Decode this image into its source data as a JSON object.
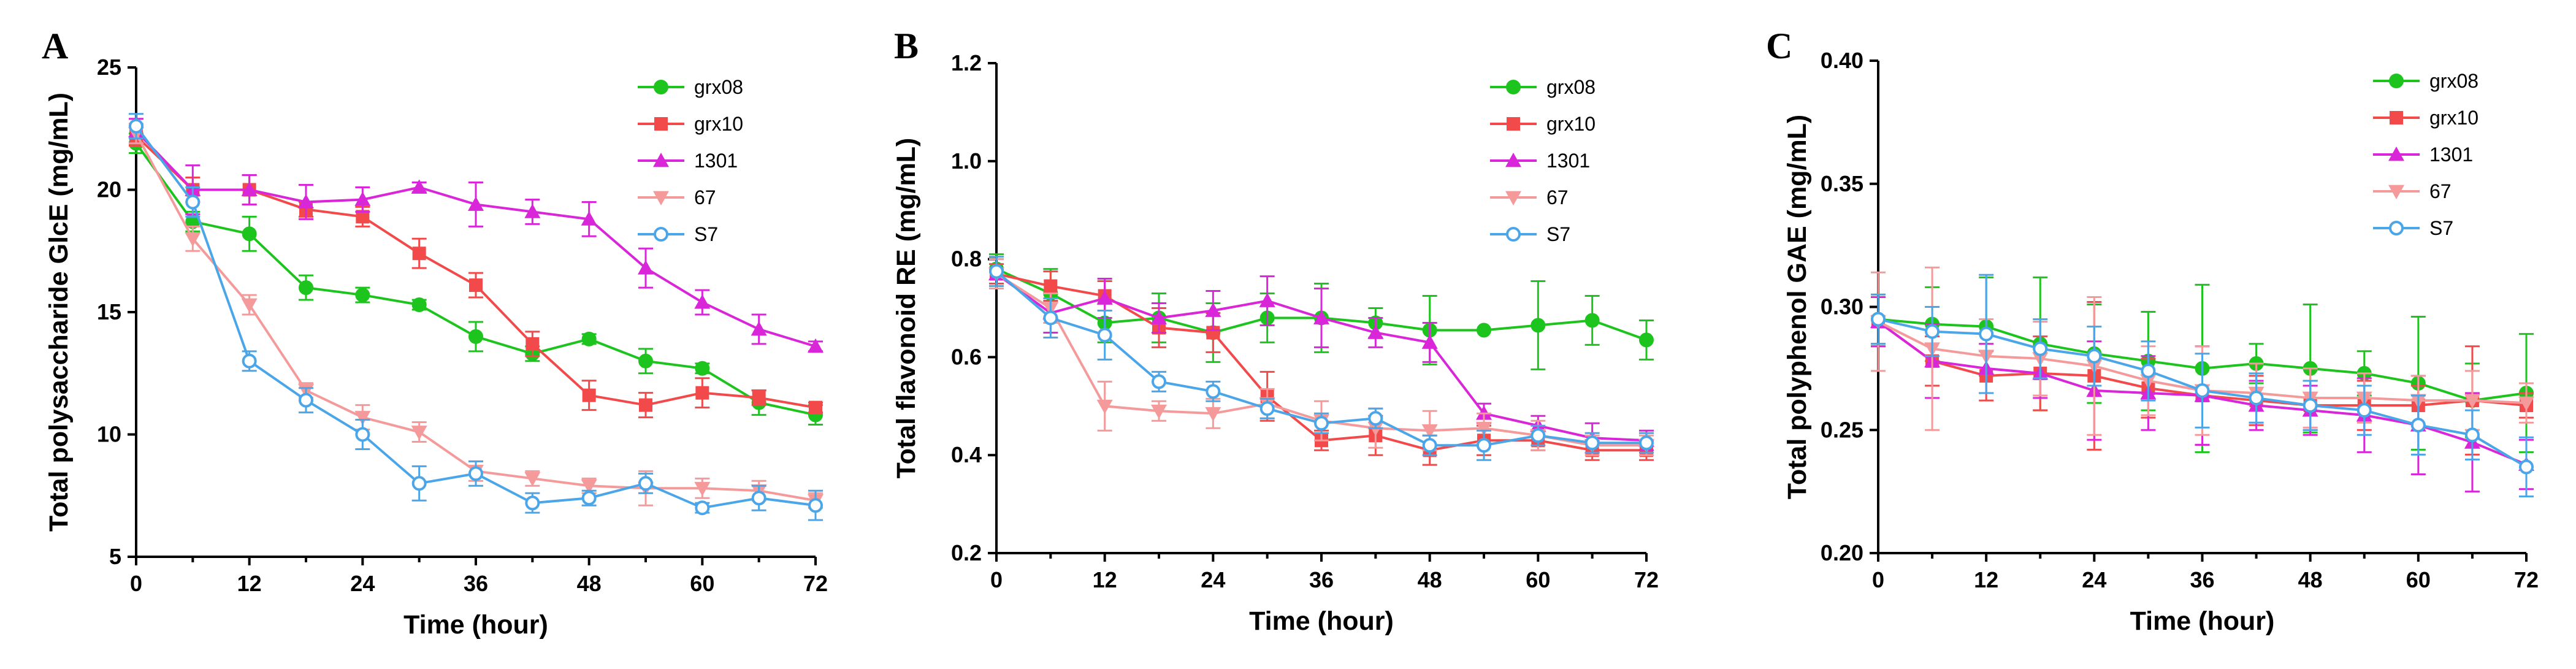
{
  "chart_data": [
    {
      "type": "line",
      "panel_label": "A",
      "xlabel": "Time (hour)",
      "ylabel": "Total polysaccharide GlcE (mg/mL)",
      "xlim": [
        0,
        72
      ],
      "ylim": [
        5,
        25
      ],
      "xticks": [
        "0",
        "12",
        "24",
        "36",
        "48",
        "60",
        "72"
      ],
      "yticks": [
        "5",
        "10",
        "15",
        "20",
        "25"
      ],
      "legend_position": "top-right",
      "x": [
        0,
        6,
        12,
        18,
        24,
        30,
        36,
        42,
        48,
        54,
        60,
        66,
        72
      ],
      "series": [
        {
          "name": "grx08",
          "color": "#1ec41e",
          "marker": "circle",
          "values": [
            21.9,
            18.7,
            18.2,
            16.0,
            15.7,
            15.3,
            14.0,
            13.3,
            13.9,
            13.0,
            12.7,
            11.3,
            10.8
          ],
          "errors": [
            0.4,
            0.4,
            0.7,
            0.5,
            0.3,
            0.2,
            0.6,
            0.3,
            0.2,
            0.5,
            0.2,
            0.5,
            0.4
          ]
        },
        {
          "name": "grx10",
          "color": "#f24a4a",
          "marker": "square",
          "values": [
            22.2,
            20.0,
            20.0,
            19.2,
            18.9,
            17.4,
            16.1,
            13.7,
            11.6,
            11.2,
            11.7,
            11.5,
            11.1
          ],
          "errors": [
            0.4,
            0.5,
            0.6,
            0.3,
            0.4,
            0.6,
            0.5,
            0.5,
            0.6,
            0.5,
            0.6,
            0.3,
            0.2
          ]
        },
        {
          "name": "1301",
          "color": "#d826d8",
          "marker": "triangle-up",
          "values": [
            22.4,
            20.0,
            20.0,
            19.5,
            19.6,
            20.1,
            19.4,
            19.1,
            18.8,
            16.8,
            15.4,
            14.3,
            13.6
          ],
          "errors": [
            0.5,
            1.0,
            0.6,
            0.7,
            0.5,
            0.2,
            0.9,
            0.5,
            0.7,
            0.8,
            0.5,
            0.6,
            0.2
          ]
        },
        {
          "name": "67",
          "color": "#f59a9a",
          "marker": "triangle-down",
          "values": [
            22.3,
            18.0,
            15.3,
            11.8,
            10.7,
            10.1,
            8.5,
            8.2,
            7.9,
            7.8,
            7.8,
            7.7,
            7.3
          ],
          "errors": [
            0.4,
            0.5,
            0.4,
            0.3,
            0.5,
            0.4,
            0.4,
            0.3,
            0.3,
            0.7,
            0.4,
            0.4,
            0.3
          ]
        },
        {
          "name": "S7",
          "color": "#4aa6e8",
          "marker": "circle-open",
          "values": [
            22.6,
            19.5,
            13.0,
            11.4,
            10.0,
            8.0,
            8.4,
            7.2,
            7.4,
            8.0,
            7.0,
            7.4,
            7.1
          ],
          "errors": [
            0.5,
            0.6,
            0.4,
            0.5,
            0.6,
            0.7,
            0.5,
            0.4,
            0.3,
            0.4,
            0.2,
            0.5,
            0.6
          ]
        }
      ]
    },
    {
      "type": "line",
      "panel_label": "B",
      "xlabel": "Time (hour)",
      "ylabel": "Total flavonoid  RE (mg/mL)",
      "xlim": [
        0,
        72
      ],
      "ylim": [
        0.2,
        1.2
      ],
      "xticks": [
        "0",
        "12",
        "24",
        "36",
        "48",
        "60",
        "72"
      ],
      "yticks": [
        "0.2",
        "0.4",
        "0.6",
        "0.8",
        "1.0",
        "1.2"
      ],
      "legend_position": "top-right",
      "x": [
        0,
        6,
        12,
        18,
        24,
        30,
        36,
        42,
        48,
        54,
        60,
        66,
        72
      ],
      "series": [
        {
          "name": "grx08",
          "color": "#1ec41e",
          "marker": "circle",
          "values": [
            0.78,
            0.73,
            0.67,
            0.68,
            0.65,
            0.68,
            0.68,
            0.67,
            0.655,
            0.655,
            0.665,
            0.675,
            0.635
          ],
          "errors": [
            0.03,
            0.05,
            0.04,
            0.05,
            0.06,
            0.05,
            0.07,
            0.03,
            0.07,
            0.0,
            0.09,
            0.05,
            0.04
          ]
        },
        {
          "name": "grx10",
          "color": "#f24a4a",
          "marker": "square",
          "values": [
            0.77,
            0.745,
            0.725,
            0.66,
            0.65,
            0.52,
            0.43,
            0.44,
            0.41,
            0.43,
            0.43,
            0.41,
            0.41
          ],
          "errors": [
            0.02,
            0.03,
            0.03,
            0.04,
            0.04,
            0.05,
            0.02,
            0.04,
            0.03,
            0.03,
            0.02,
            0.02,
            0.02
          ]
        },
        {
          "name": "1301",
          "color": "#d826d8",
          "marker": "triangle-up",
          "values": [
            0.77,
            0.69,
            0.72,
            0.68,
            0.695,
            0.715,
            0.68,
            0.65,
            0.63,
            0.485,
            0.46,
            0.435,
            0.43
          ],
          "errors": [
            0.03,
            0.04,
            0.04,
            0.03,
            0.04,
            0.05,
            0.06,
            0.03,
            0.04,
            0.02,
            0.02,
            0.03,
            0.02
          ]
        },
        {
          "name": "67",
          "color": "#f59a9a",
          "marker": "triangle-down",
          "values": [
            0.77,
            0.7,
            0.5,
            0.49,
            0.485,
            0.505,
            0.47,
            0.455,
            0.45,
            0.455,
            0.44,
            0.42,
            0.42
          ],
          "errors": [
            0.03,
            0.03,
            0.05,
            0.02,
            0.03,
            0.03,
            0.04,
            0.04,
            0.04,
            0.03,
            0.03,
            0.02,
            0.02
          ]
        },
        {
          "name": "S7",
          "color": "#4aa6e8",
          "marker": "circle-open",
          "values": [
            0.775,
            0.68,
            0.645,
            0.55,
            0.53,
            0.495,
            0.465,
            0.475,
            0.42,
            0.42,
            0.44,
            0.425,
            0.425
          ],
          "errors": [
            0.03,
            0.04,
            0.05,
            0.02,
            0.02,
            0.02,
            0.02,
            0.02,
            0.02,
            0.03,
            0.02,
            0.02,
            0.02
          ]
        }
      ]
    },
    {
      "type": "line",
      "panel_label": "C",
      "xlabel": "Time (hour)",
      "ylabel": "Total polyphenol  GAE (mg/mL)",
      "xlim": [
        0,
        72
      ],
      "ylim": [
        0.2,
        0.4
      ],
      "xticks": [
        "0",
        "12",
        "24",
        "36",
        "48",
        "60",
        "72"
      ],
      "yticks": [
        "0.20",
        "0.25",
        "0.30",
        "0.35",
        "0.40"
      ],
      "legend_position": "top-right",
      "x": [
        0,
        6,
        12,
        18,
        24,
        30,
        36,
        42,
        48,
        54,
        60,
        66,
        72
      ],
      "series": [
        {
          "name": "grx08",
          "color": "#1ec41e",
          "marker": "circle",
          "values": [
            0.295,
            0.293,
            0.292,
            0.285,
            0.281,
            0.278,
            0.275,
            0.277,
            0.275,
            0.273,
            0.269,
            0.262,
            0.265
          ],
          "errors": [
            0.01,
            0.015,
            0.02,
            0.027,
            0.02,
            0.02,
            0.034,
            0.008,
            0.026,
            0.009,
            0.027,
            0.015,
            0.024
          ]
        },
        {
          "name": "grx10",
          "color": "#f24a4a",
          "marker": "square",
          "values": [
            0.294,
            0.278,
            0.272,
            0.273,
            0.272,
            0.267,
            0.264,
            0.262,
            0.26,
            0.26,
            0.26,
            0.262,
            0.26
          ],
          "errors": [
            0.01,
            0.01,
            0.01,
            0.015,
            0.03,
            0.012,
            0.02,
            0.01,
            0.01,
            0.01,
            0.008,
            0.022,
            0.005
          ]
        },
        {
          "name": "1301",
          "color": "#d826d8",
          "marker": "triangle-up",
          "values": [
            0.294,
            0.278,
            0.275,
            0.273,
            0.266,
            0.265,
            0.264,
            0.26,
            0.258,
            0.256,
            0.252,
            0.245,
            0.236
          ],
          "errors": [
            0.01,
            0.015,
            0.01,
            0.01,
            0.02,
            0.015,
            0.02,
            0.01,
            0.01,
            0.015,
            0.02,
            0.02,
            0.01
          ]
        },
        {
          "name": "67",
          "color": "#f59a9a",
          "marker": "triangle-down",
          "values": [
            0.294,
            0.283,
            0.28,
            0.279,
            0.276,
            0.27,
            0.266,
            0.265,
            0.263,
            0.263,
            0.262,
            0.262,
            0.261
          ],
          "errors": [
            0.02,
            0.033,
            0.015,
            0.015,
            0.028,
            0.014,
            0.018,
            0.012,
            0.012,
            0.01,
            0.01,
            0.012,
            0.008
          ]
        },
        {
          "name": "S7",
          "color": "#4aa6e8",
          "marker": "circle-open",
          "values": [
            0.295,
            0.29,
            0.289,
            0.283,
            0.28,
            0.274,
            0.266,
            0.263,
            0.26,
            0.258,
            0.252,
            0.248,
            0.235
          ],
          "errors": [
            0.01,
            0.01,
            0.024,
            0.012,
            0.012,
            0.012,
            0.015,
            0.01,
            0.01,
            0.01,
            0.012,
            0.01,
            0.012
          ]
        }
      ]
    }
  ]
}
